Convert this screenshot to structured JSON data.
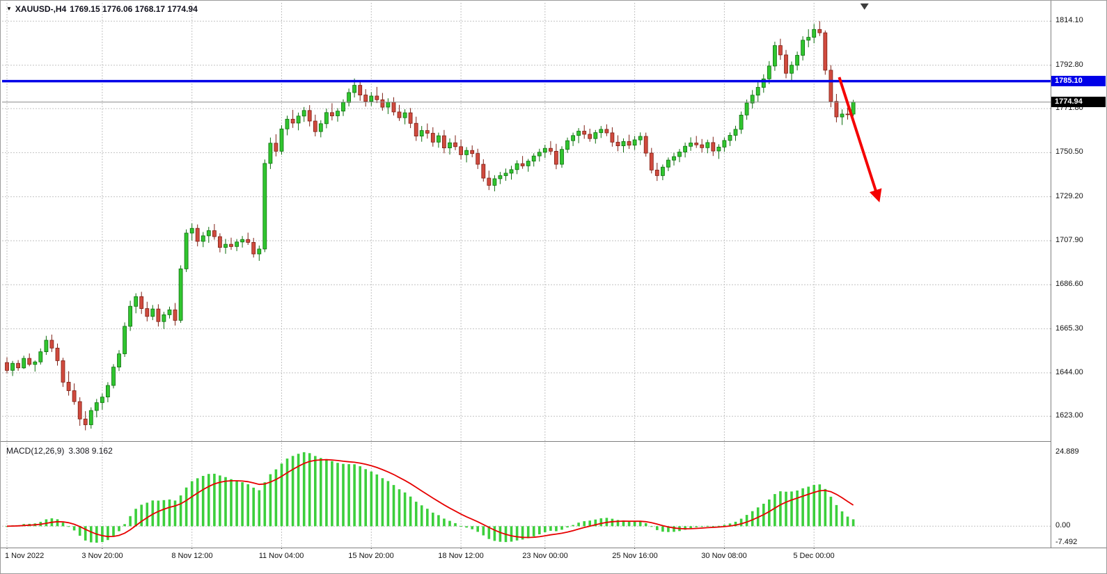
{
  "header": {
    "symbol_period": "XAUUSD-,H4",
    "ohlc": "1769.15 1776.06 1768.17 1774.94"
  },
  "chart_data": {
    "type": "candlestick",
    "symbol": "XAUUSD-",
    "timeframe": "H4",
    "current_ohlc": {
      "open": 1769.15,
      "high": 1776.06,
      "low": 1768.17,
      "close": 1774.94
    },
    "price_axis": {
      "min": 1612,
      "max": 1823,
      "labels": [
        {
          "value": 1814.1,
          "text": "1814.10"
        },
        {
          "value": 1792.8,
          "text": "1792.80"
        },
        {
          "value": 1771.8,
          "text": "1771.80"
        },
        {
          "value": 1750.5,
          "text": "1750.50"
        },
        {
          "value": 1729.2,
          "text": "1729.20"
        },
        {
          "value": 1707.9,
          "text": "1707.90"
        },
        {
          "value": 1686.6,
          "text": "1686.60"
        },
        {
          "value": 1665.3,
          "text": "1665.30"
        },
        {
          "value": 1644.0,
          "text": "1644.00"
        },
        {
          "value": 1623.0,
          "text": "1623.00"
        }
      ]
    },
    "time_axis": [
      {
        "i": 0,
        "text": "1 Nov 2022"
      },
      {
        "i": 17,
        "text": "3 Nov 20:00"
      },
      {
        "i": 33,
        "text": "8 Nov 12:00"
      },
      {
        "i": 49,
        "text": "11 Nov 04:00"
      },
      {
        "i": 65,
        "text": "15 Nov 20:00"
      },
      {
        "i": 81,
        "text": "18 Nov 12:00"
      },
      {
        "i": 96,
        "text": "23 Nov 00:00"
      },
      {
        "i": 112,
        "text": "25 Nov 16:00"
      },
      {
        "i": 128,
        "text": "30 Nov 08:00"
      },
      {
        "i": 144,
        "text": "5 Dec 00:00"
      }
    ],
    "candles": [
      [
        1649,
        1651.5,
        1643.8,
        1645.2
      ],
      [
        1645.2,
        1649.8,
        1642.5,
        1648.6
      ],
      [
        1648.6,
        1650.2,
        1645,
        1646.4
      ],
      [
        1646.4,
        1652.3,
        1645.9,
        1651
      ],
      [
        1651,
        1653.4,
        1647.2,
        1648.1
      ],
      [
        1648.1,
        1650,
        1644.6,
        1649.3
      ],
      [
        1649.3,
        1655.8,
        1648,
        1654.2
      ],
      [
        1654.2,
        1661.9,
        1652.7,
        1659.8
      ],
      [
        1659.8,
        1662.5,
        1654.1,
        1656
      ],
      [
        1656,
        1658.2,
        1647.5,
        1649.9
      ],
      [
        1649.9,
        1651.3,
        1637.2,
        1639.5
      ],
      [
        1639.5,
        1644.8,
        1633,
        1635.4
      ],
      [
        1635.4,
        1638.9,
        1628.6,
        1630.1
      ],
      [
        1630.1,
        1632.2,
        1618.4,
        1621.7
      ],
      [
        1621.7,
        1625.5,
        1616.2,
        1618.9
      ],
      [
        1618.9,
        1627.3,
        1617,
        1625.8
      ],
      [
        1625.8,
        1631.4,
        1622.5,
        1629.6
      ],
      [
        1629.6,
        1634,
        1626.2,
        1632.3
      ],
      [
        1632.3,
        1639.5,
        1629.8,
        1637.9
      ],
      [
        1637.9,
        1648.2,
        1636.5,
        1646.8
      ],
      [
        1646.8,
        1655,
        1644.9,
        1653.2
      ],
      [
        1653.2,
        1668.4,
        1651.7,
        1666.5
      ],
      [
        1666.5,
        1678.9,
        1664.3,
        1676.2
      ],
      [
        1676.2,
        1682.5,
        1672.8,
        1680.9
      ],
      [
        1680.9,
        1683.2,
        1672.5,
        1675.1
      ],
      [
        1675.1,
        1678.4,
        1668.9,
        1671.3
      ],
      [
        1671.3,
        1676.8,
        1669.5,
        1674.9
      ],
      [
        1674.9,
        1677.2,
        1666.4,
        1668.8
      ],
      [
        1668.8,
        1673.5,
        1665.2,
        1672.1
      ],
      [
        1672.1,
        1676,
        1670.3,
        1674.5
      ],
      [
        1674.5,
        1677.8,
        1666.9,
        1669.4
      ],
      [
        1669.4,
        1696,
        1668.2,
        1694.3
      ],
      [
        1694.3,
        1713.4,
        1692.8,
        1711.6
      ],
      [
        1711.6,
        1716.3,
        1708,
        1713.9
      ],
      [
        1713.9,
        1715.8,
        1705.2,
        1707.6
      ],
      [
        1707.6,
        1712.1,
        1704.8,
        1710.3
      ],
      [
        1710.3,
        1714.6,
        1706.9,
        1712.8
      ],
      [
        1712.8,
        1716,
        1708.4,
        1709.9
      ],
      [
        1709.9,
        1711.5,
        1702.3,
        1704.7
      ],
      [
        1704.7,
        1708.8,
        1701.6,
        1706.2
      ],
      [
        1706.2,
        1709.4,
        1703.5,
        1705.1
      ],
      [
        1705.1,
        1708.7,
        1702.9,
        1707.3
      ],
      [
        1707.3,
        1710.2,
        1704.6,
        1708.5
      ],
      [
        1708.5,
        1711.8,
        1705.9,
        1707.1
      ],
      [
        1707.1,
        1709.3,
        1699.8,
        1701.5
      ],
      [
        1701.5,
        1705.6,
        1698.2,
        1703.9
      ],
      [
        1703.9,
        1747.2,
        1702.4,
        1745.3
      ],
      [
        1745.3,
        1757.8,
        1742.6,
        1755.1
      ],
      [
        1755.1,
        1759.4,
        1748.7,
        1751.2
      ],
      [
        1751.2,
        1763.8,
        1749.5,
        1762
      ],
      [
        1762,
        1768.4,
        1758.9,
        1766.7
      ],
      [
        1766.7,
        1771.2,
        1762.5,
        1764.8
      ],
      [
        1764.8,
        1769.9,
        1761.3,
        1768.2
      ],
      [
        1768.2,
        1772.6,
        1765.4,
        1770.9
      ],
      [
        1770.9,
        1773.5,
        1763.2,
        1765.8
      ],
      [
        1765.8,
        1768.9,
        1758.4,
        1760.7
      ],
      [
        1760.7,
        1766.2,
        1757.9,
        1764.5
      ],
      [
        1764.5,
        1771.8,
        1762.3,
        1769.9
      ],
      [
        1769.9,
        1774.4,
        1766.1,
        1768.3
      ],
      [
        1768.3,
        1772,
        1765.5,
        1770.6
      ],
      [
        1770.6,
        1776.3,
        1768.2,
        1774.8
      ],
      [
        1774.8,
        1781.5,
        1772.9,
        1779.6
      ],
      [
        1779.6,
        1786.4,
        1777.2,
        1783.1
      ],
      [
        1783.1,
        1785,
        1775.6,
        1778.4
      ],
      [
        1778.4,
        1781.2,
        1772.8,
        1775.3
      ],
      [
        1775.3,
        1779.8,
        1773.1,
        1777.9
      ],
      [
        1777.9,
        1782.3,
        1774.5,
        1776.1
      ],
      [
        1776.1,
        1779.4,
        1770.8,
        1772.5
      ],
      [
        1772.5,
        1776.8,
        1769.2,
        1774.9
      ],
      [
        1774.9,
        1777.3,
        1768.5,
        1770.2
      ],
      [
        1770.2,
        1773.6,
        1765.9,
        1767.4
      ],
      [
        1767.4,
        1771.5,
        1764.2,
        1769.8
      ],
      [
        1769.8,
        1772.1,
        1762.4,
        1764.7
      ],
      [
        1764.7,
        1767.9,
        1756.2,
        1758.5
      ],
      [
        1758.5,
        1763.4,
        1755.8,
        1761.2
      ],
      [
        1761.2,
        1764.6,
        1757.3,
        1759.9
      ],
      [
        1759.9,
        1762.8,
        1753.4,
        1755.6
      ],
      [
        1755.6,
        1760.2,
        1752.9,
        1758.7
      ],
      [
        1758.7,
        1761.5,
        1750.2,
        1752.8
      ],
      [
        1752.8,
        1757.4,
        1749.6,
        1755.3
      ],
      [
        1755.3,
        1758.9,
        1751.7,
        1753.4
      ],
      [
        1753.4,
        1756.8,
        1747.2,
        1749.5
      ],
      [
        1749.5,
        1753.2,
        1745.8,
        1751.6
      ],
      [
        1751.6,
        1754,
        1748.3,
        1750.1
      ],
      [
        1750.1,
        1752.4,
        1742.6,
        1744.9
      ],
      [
        1744.9,
        1747.3,
        1736.5,
        1738.2
      ],
      [
        1738.2,
        1741.8,
        1732.4,
        1734.7
      ],
      [
        1734.7,
        1739.6,
        1731.8,
        1737.9
      ],
      [
        1737.9,
        1741.2,
        1735.3,
        1739.4
      ],
      [
        1739.4,
        1742.8,
        1736.9,
        1740.6
      ],
      [
        1740.6,
        1744.2,
        1737.5,
        1742.3
      ],
      [
        1742.3,
        1746.8,
        1740.1,
        1745.2
      ],
      [
        1745.2,
        1748.9,
        1742.7,
        1744.1
      ],
      [
        1744.1,
        1747.5,
        1741.3,
        1746.4
      ],
      [
        1746.4,
        1750.2,
        1743.8,
        1748.9
      ],
      [
        1748.9,
        1752.4,
        1746.2,
        1750.7
      ],
      [
        1750.7,
        1754.3,
        1747.9,
        1752.6
      ],
      [
        1752.6,
        1756.1,
        1749.4,
        1751.2
      ],
      [
        1751.2,
        1754.8,
        1742.5,
        1744.9
      ],
      [
        1744.9,
        1753.6,
        1743.2,
        1752.1
      ],
      [
        1752.1,
        1757.8,
        1750.4,
        1756.3
      ],
      [
        1756.3,
        1760.2,
        1753.7,
        1758.8
      ],
      [
        1758.8,
        1762.4,
        1755.1,
        1760.9
      ],
      [
        1760.9,
        1763.8,
        1757.2,
        1759.4
      ],
      [
        1759.4,
        1762.1,
        1755.8,
        1757.3
      ],
      [
        1757.3,
        1761.5,
        1754.9,
        1760.2
      ],
      [
        1760.2,
        1763.4,
        1757.6,
        1761.8
      ],
      [
        1761.8,
        1764.2,
        1758.5,
        1760.1
      ],
      [
        1760.1,
        1762.8,
        1753.4,
        1755.6
      ],
      [
        1755.6,
        1758.9,
        1751.2,
        1753.8
      ],
      [
        1753.8,
        1757.4,
        1750.6,
        1755.9
      ],
      [
        1755.9,
        1759.2,
        1752.3,
        1754.1
      ],
      [
        1754.1,
        1758.6,
        1751.8,
        1756.7
      ],
      [
        1756.7,
        1760.3,
        1754.2,
        1758.4
      ],
      [
        1758.4,
        1760.2,
        1748.6,
        1750.3
      ],
      [
        1750.3,
        1752.8,
        1740.5,
        1742.1
      ],
      [
        1742.1,
        1745.6,
        1736.8,
        1739.4
      ],
      [
        1739.4,
        1744.8,
        1737.2,
        1743.5
      ],
      [
        1743.5,
        1748.2,
        1741.6,
        1746.9
      ],
      [
        1746.9,
        1750.4,
        1744.3,
        1748.6
      ],
      [
        1748.6,
        1752.3,
        1745.9,
        1750.8
      ],
      [
        1750.8,
        1755.4,
        1748.2,
        1753.6
      ],
      [
        1753.6,
        1757.9,
        1751.4,
        1755.2
      ],
      [
        1755.2,
        1758.6,
        1752.8,
        1754.3
      ],
      [
        1754.3,
        1757.1,
        1750.6,
        1752.9
      ],
      [
        1752.9,
        1756.8,
        1750.2,
        1755.4
      ],
      [
        1755.4,
        1758.2,
        1748.9,
        1751.3
      ],
      [
        1751.3,
        1754.6,
        1747.5,
        1753.2
      ],
      [
        1753.2,
        1757.8,
        1750.9,
        1756.4
      ],
      [
        1756.4,
        1760.3,
        1753.7,
        1758.9
      ],
      [
        1758.9,
        1763.5,
        1756.2,
        1761.8
      ],
      [
        1761.8,
        1770.4,
        1759.6,
        1768.7
      ],
      [
        1768.7,
        1776.2,
        1766.4,
        1774.5
      ],
      [
        1774.5,
        1780.8,
        1771.9,
        1778.3
      ],
      [
        1778.3,
        1784.6,
        1775.2,
        1782.1
      ],
      [
        1782.1,
        1788.4,
        1779.5,
        1786.2
      ],
      [
        1786.2,
        1794.8,
        1783.7,
        1792.4
      ],
      [
        1792.4,
        1804.2,
        1790.1,
        1802.3
      ],
      [
        1802.3,
        1805.6,
        1795.4,
        1797.8
      ],
      [
        1797.8,
        1800.2,
        1786.5,
        1788.9
      ],
      [
        1788.9,
        1794.6,
        1785.2,
        1792.8
      ],
      [
        1792.8,
        1799.4,
        1790.3,
        1797.6
      ],
      [
        1797.6,
        1806.8,
        1795.1,
        1804.9
      ],
      [
        1804.9,
        1810.2,
        1801.5,
        1806.3
      ],
      [
        1806.3,
        1812.8,
        1803.4,
        1810.1
      ],
      [
        1810.1,
        1814.1,
        1806.9,
        1808.5
      ],
      [
        1808.5,
        1809.6,
        1788.2,
        1790.4
      ],
      [
        1790.4,
        1792.8,
        1772.5,
        1775.3
      ],
      [
        1775.3,
        1778.9,
        1765.2,
        1767.8
      ],
      [
        1767.8,
        1771.4,
        1763.9,
        1769.2
      ],
      [
        1769.2,
        1772.3,
        1766.5,
        1769.1
      ],
      [
        1769.15,
        1776.06,
        1768.17,
        1774.94
      ]
    ],
    "hline": {
      "price": 1785.1,
      "text": "1785.10"
    },
    "current_price": {
      "price": 1774.94,
      "text": "1774.94"
    },
    "arrow": {
      "from": {
        "candle": 148.5,
        "price": 1787
      },
      "to": {
        "candle": 155.5,
        "price": 1728
      }
    },
    "shift_marker_candle": 153,
    "macd": {
      "label": "MACD(12,26,9)",
      "values_display": "3.308 9.162",
      "fast": 12,
      "slow": 26,
      "signal_period": 9,
      "axis": {
        "max_text": "24.889",
        "zero_text": "0.00",
        "min_text": "-7.492"
      }
    },
    "colors": {
      "bull": "#30c52f",
      "bull_edge": "#0e6e0e",
      "bear": "#d04a3e",
      "bear_edge": "#7e2015",
      "hline": "#0000e8",
      "current_line": "#8a8a8a",
      "tag_current_bg": "#000000",
      "macd_bar": "#3ccf3c",
      "macd_signal": "#e60000",
      "arrow": "#f40000",
      "grid": "#c2c2c2",
      "border": "#808080"
    }
  }
}
